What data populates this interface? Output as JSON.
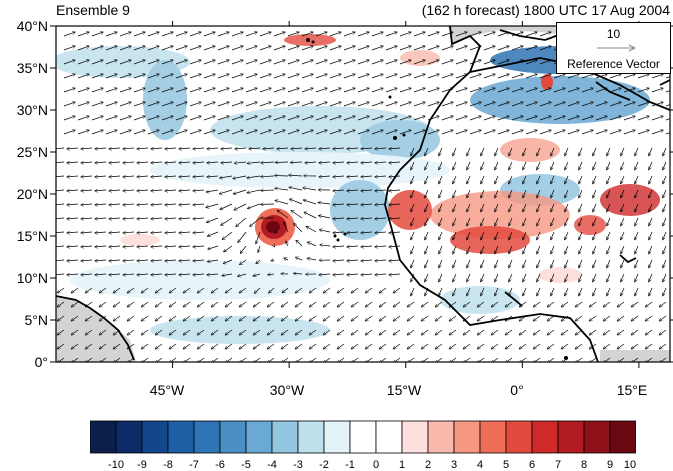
{
  "header": {
    "left_title": "Ensemble 9",
    "right_title": "(162 h forecast) 1800 UTC 17 Aug 2004"
  },
  "map": {
    "lat_labels": [
      "40°N",
      "35°N",
      "30°N",
      "25°N",
      "20°N",
      "15°N",
      "10°N",
      "5°N",
      "0°"
    ],
    "lon_labels": [
      "45°W",
      "30°W",
      "15°W",
      "0°",
      "15°E"
    ],
    "lon_range": [
      -60,
      19
    ],
    "lat_range": [
      0,
      40
    ],
    "reference_vector": {
      "value": "10",
      "label": "Reference Vector"
    }
  },
  "colorbar": {
    "labels": [
      "-10",
      "-9",
      "-8",
      "-7",
      "-6",
      "-5",
      "-4",
      "-3",
      "-2",
      "-1",
      "0",
      "1",
      "2",
      "3",
      "4",
      "5",
      "6",
      "7",
      "8",
      "9",
      "10"
    ],
    "colors": [
      "#0b1f4a",
      "#0d2b66",
      "#14468a",
      "#1f5fa6",
      "#2f75b5",
      "#4a90c6",
      "#6aa9d3",
      "#93c6e0",
      "#bfe0ed",
      "#e3f3f8",
      "#ffffff",
      "#ffffff",
      "#fde0de",
      "#f9b9ad",
      "#f59783",
      "#ef6e59",
      "#e34a3e",
      "#cf2a2a",
      "#b31b23",
      "#8e1019",
      "#6a0710"
    ]
  },
  "colors": {
    "land": "#ffffff",
    "missing": "#d3d3d3",
    "coast": "#000000"
  }
}
